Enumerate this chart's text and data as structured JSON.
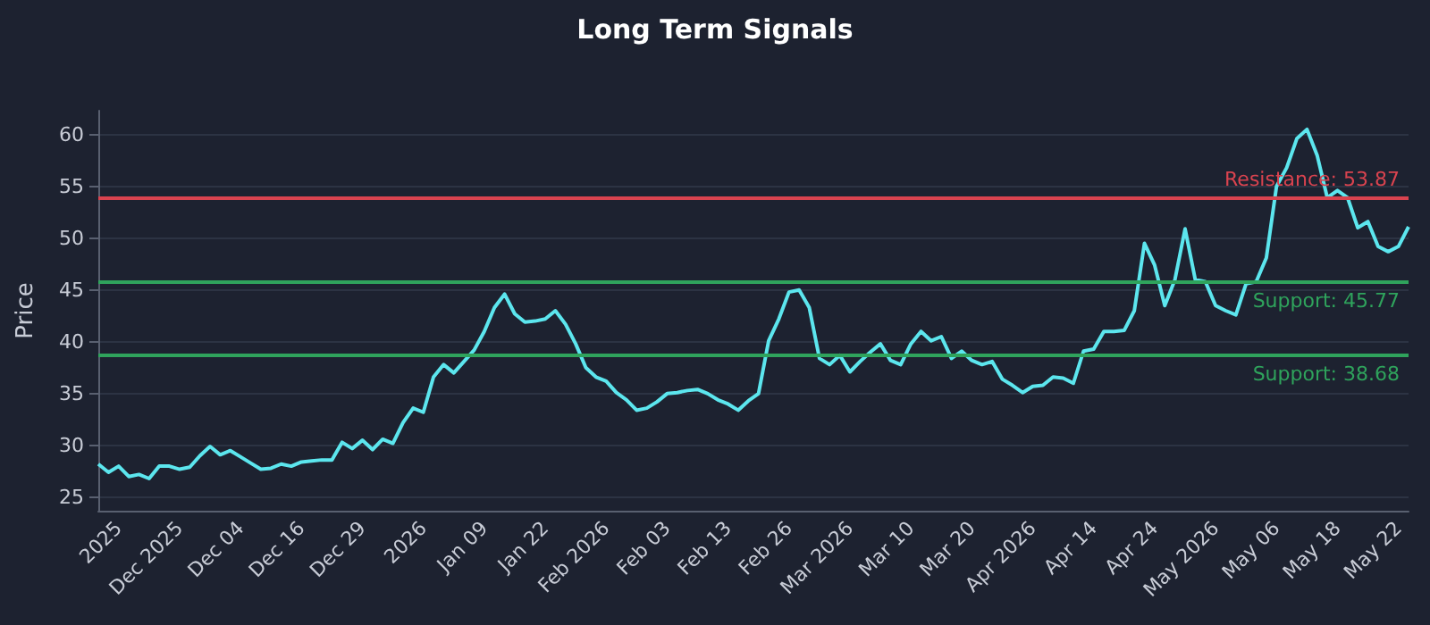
{
  "chart_data": {
    "type": "line",
    "title": "Long Term Signals",
    "ylabel": "Price",
    "categories": [
      null,
      null,
      "2025",
      null,
      null,
      null,
      null,
      null,
      "Dec 2025",
      null,
      null,
      null,
      null,
      null,
      "Dec 04",
      null,
      null,
      null,
      null,
      null,
      "Dec 16",
      null,
      null,
      null,
      null,
      null,
      "Dec 29",
      null,
      null,
      null,
      null,
      null,
      "2026",
      null,
      null,
      null,
      null,
      null,
      "Jan 09",
      null,
      null,
      null,
      null,
      null,
      "Jan 22",
      null,
      null,
      null,
      null,
      null,
      "Feb 2026",
      null,
      null,
      null,
      null,
      null,
      "Feb 03",
      null,
      null,
      null,
      null,
      null,
      "Feb 13",
      null,
      null,
      null,
      null,
      null,
      "Feb 26",
      null,
      null,
      null,
      null,
      null,
      "Mar 2026",
      null,
      null,
      null,
      null,
      null,
      "Mar 10",
      null,
      null,
      null,
      null,
      null,
      "Mar 20",
      null,
      null,
      null,
      null,
      null,
      "Apr 2026",
      null,
      null,
      null,
      null,
      null,
      "Apr 14",
      null,
      null,
      null,
      null,
      null,
      "Apr 24",
      null,
      null,
      null,
      null,
      null,
      "May 2026",
      null,
      null,
      null,
      null,
      null,
      "May 06",
      null,
      null,
      null,
      null,
      null,
      "May 18",
      null,
      null,
      null,
      null,
      null,
      "May 22",
      null
    ],
    "series": [
      {
        "color": "#5ce6ee",
        "values": [
          28.2,
          27.4,
          28.0,
          27.0,
          27.2,
          26.8,
          28.0,
          28.0,
          27.7,
          27.9,
          29.0,
          29.9,
          29.1,
          29.5,
          28.9,
          28.3,
          27.7,
          27.8,
          28.2,
          28.0,
          28.4,
          28.5,
          28.6,
          28.6,
          30.3,
          29.7,
          30.5,
          29.6,
          30.6,
          30.2,
          32.2,
          33.6,
          33.2,
          36.6,
          37.8,
          37.0,
          38.1,
          39.2,
          41.0,
          43.3,
          44.6,
          42.7,
          41.9,
          42.0,
          42.2,
          43.0,
          41.7,
          39.8,
          37.5,
          36.6,
          36.2,
          35.1,
          34.4,
          33.4,
          33.6,
          34.2,
          35.0,
          35.1,
          35.3,
          35.4,
          35.0,
          34.4,
          34.0,
          33.4,
          34.3,
          35.0,
          40.1,
          42.2,
          44.8,
          45.0,
          43.3,
          38.4,
          37.8,
          38.7,
          37.1,
          38.1,
          39.0,
          39.8,
          38.2,
          37.8,
          39.8,
          41.0,
          40.1,
          40.5,
          38.4,
          39.1,
          38.2,
          37.8,
          38.1,
          36.4,
          35.8,
          35.1,
          35.7,
          35.8,
          36.6,
          36.5,
          36.0,
          39.1,
          39.3,
          41.0,
          41.0,
          41.1,
          43.0,
          49.5,
          47.4,
          43.5,
          46.0,
          50.9,
          46.0,
          45.8,
          43.5,
          43.0,
          42.6,
          45.6,
          45.8,
          48.1,
          55.0,
          56.8,
          59.6,
          60.5,
          58.0,
          53.9,
          54.6,
          53.9,
          51.0,
          51.6,
          49.2,
          48.7,
          49.2,
          51.1
        ]
      }
    ],
    "ylim": [
      23.7,
      62.3
    ],
    "yticks": [
      25,
      30,
      35,
      40,
      45,
      50,
      55,
      60
    ],
    "grid": "y",
    "marker": "none",
    "line_style": "solid",
    "ref_lines": [
      {
        "axis": "y",
        "value": 53.87,
        "label": "Resistance: 53.87",
        "color": "#d9434f"
      },
      {
        "axis": "y",
        "value": 45.77,
        "label": "Support: 45.77",
        "color": "#2fa35c"
      },
      {
        "axis": "y",
        "value": 38.68,
        "label": "Support: 38.68",
        "color": "#2fa35c"
      }
    ]
  }
}
